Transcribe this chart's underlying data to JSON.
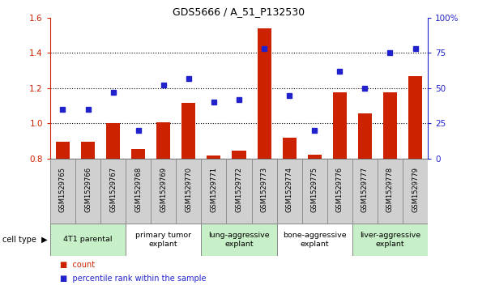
{
  "title": "GDS5666 / A_51_P132530",
  "samples": [
    "GSM1529765",
    "GSM1529766",
    "GSM1529767",
    "GSM1529768",
    "GSM1529769",
    "GSM1529770",
    "GSM1529771",
    "GSM1529772",
    "GSM1529773",
    "GSM1529774",
    "GSM1529775",
    "GSM1529776",
    "GSM1529777",
    "GSM1529778",
    "GSM1529779"
  ],
  "bar_values": [
    0.895,
    0.895,
    1.0,
    0.855,
    1.005,
    1.115,
    0.82,
    0.845,
    1.54,
    0.92,
    0.825,
    1.175,
    1.055,
    1.175,
    1.27
  ],
  "dot_values": [
    35,
    35,
    47,
    20,
    52,
    57,
    40,
    42,
    78,
    45,
    20,
    62,
    50,
    75,
    78
  ],
  "cell_groups": [
    {
      "label": "4T1 parental",
      "start": 0,
      "end": 3,
      "color": "#c8f0c8"
    },
    {
      "label": "primary tumor\nexplant",
      "start": 3,
      "end": 6,
      "color": "#ffffff"
    },
    {
      "label": "lung-aggressive\nexplant",
      "start": 6,
      "end": 9,
      "color": "#c8f0c8"
    },
    {
      "label": "bone-aggressive\nexplant",
      "start": 9,
      "end": 12,
      "color": "#ffffff"
    },
    {
      "label": "liver-aggressive\nexplant",
      "start": 12,
      "end": 15,
      "color": "#c8f0c8"
    }
  ],
  "ylim_left": [
    0.8,
    1.6
  ],
  "ylim_right": [
    0,
    100
  ],
  "yticks_left": [
    0.8,
    1.0,
    1.2,
    1.4,
    1.6
  ],
  "yticks_right": [
    0,
    25,
    50,
    75,
    100
  ],
  "ytick_labels_right": [
    "0",
    "25",
    "50",
    "75",
    "100%"
  ],
  "bar_color": "#cc2200",
  "dot_color": "#2222cc",
  "bar_width": 0.55,
  "legend_count_label": "count",
  "legend_pct_label": "percentile rank within the sample",
  "cell_type_label": "cell type",
  "sample_bg": "#d0d0d0",
  "grid_lines": [
    1.0,
    1.2,
    1.4
  ]
}
